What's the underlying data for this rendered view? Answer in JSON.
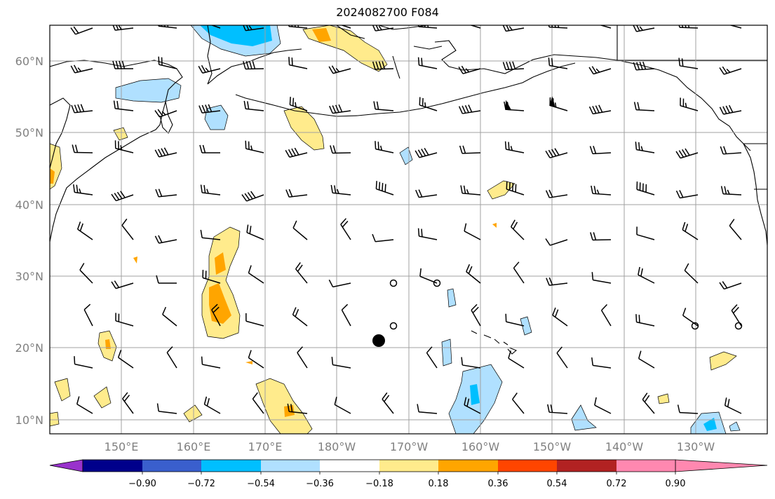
{
  "title": "2024082700 F084",
  "lat_labels": [
    "60°N",
    "50°N",
    "40°N",
    "30°N",
    "20°N",
    "10°N"
  ],
  "lon_labels": [
    "150°E",
    "160°E",
    "170°E",
    "180°W",
    "170°W",
    "160°W",
    "150°W",
    "140°W",
    "130°W"
  ],
  "colorbar": {
    "levels": [
      "−0.90",
      "−0.72",
      "−0.54",
      "−0.36",
      "−0.18",
      "0.18",
      "0.36",
      "0.54",
      "0.72",
      "0.90"
    ],
    "colors": [
      "#9932cc",
      "#00008b",
      "#3a5fcd",
      "#00bfff",
      "#b0e0ff",
      "#ffffff",
      "#ffeb8c",
      "#ffa500",
      "#ff4500",
      "#b22222",
      "#ff88b0"
    ]
  },
  "colors": {
    "grid": "#a0a0a0",
    "coast": "#000000",
    "label": "#808080"
  },
  "marker": {
    "type": "filled-circle",
    "label": ""
  }
}
